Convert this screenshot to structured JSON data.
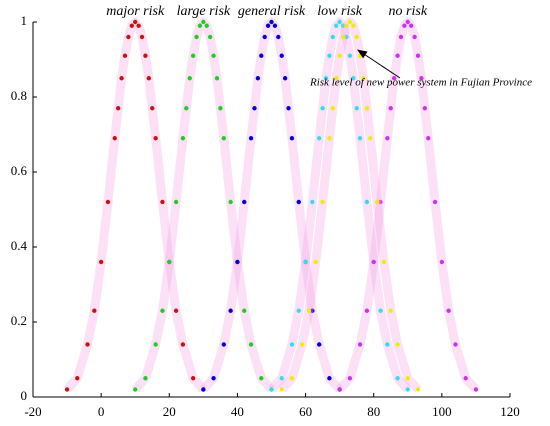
{
  "chart_data": {
    "type": "scatter",
    "xlim": [
      -20,
      120
    ],
    "xticks": [
      -20,
      0,
      20,
      40,
      60,
      80,
      100,
      120
    ],
    "ylim": [
      0,
      1
    ],
    "yticks": [
      0,
      0.2,
      0.4,
      0.6,
      0.8,
      1
    ],
    "grid": false,
    "series": [
      {
        "name": "major risk",
        "color": "#cc1111",
        "x": [
          -10,
          -7,
          -4,
          -2,
          0,
          2,
          4,
          5,
          6,
          7,
          8,
          9,
          10,
          11,
          12,
          13,
          14,
          15,
          16,
          18,
          20,
          22,
          24,
          27,
          30
        ],
        "values": [
          0.02,
          0.05,
          0.14,
          0.23,
          0.36,
          0.52,
          0.69,
          0.77,
          0.85,
          0.91,
          0.96,
          0.99,
          1,
          0.99,
          0.96,
          0.91,
          0.85,
          0.77,
          0.69,
          0.52,
          0.36,
          0.23,
          0.14,
          0.05,
          0.02
        ]
      },
      {
        "name": "large risk",
        "color": "#22cc22",
        "x": [
          10,
          13,
          16,
          18,
          20,
          22,
          24,
          25,
          26,
          27,
          28,
          29,
          30,
          31,
          32,
          33,
          34,
          35,
          36,
          38,
          40,
          42,
          44,
          47,
          50
        ],
        "values": [
          0.02,
          0.05,
          0.14,
          0.23,
          0.36,
          0.52,
          0.69,
          0.77,
          0.85,
          0.91,
          0.96,
          0.99,
          1,
          0.99,
          0.96,
          0.91,
          0.85,
          0.77,
          0.69,
          0.52,
          0.36,
          0.23,
          0.14,
          0.05,
          0.02
        ]
      },
      {
        "name": "general risk",
        "color": "#0000dd",
        "x": [
          30,
          33,
          36,
          38,
          40,
          42,
          44,
          45,
          46,
          47,
          48,
          49,
          50,
          51,
          52,
          53,
          54,
          55,
          56,
          58,
          60,
          62,
          64,
          67,
          70
        ],
        "values": [
          0.02,
          0.05,
          0.14,
          0.23,
          0.36,
          0.52,
          0.69,
          0.77,
          0.85,
          0.91,
          0.96,
          0.99,
          1,
          0.99,
          0.96,
          0.91,
          0.85,
          0.77,
          0.69,
          0.52,
          0.36,
          0.23,
          0.14,
          0.05,
          0.02
        ]
      },
      {
        "name": "low risk",
        "color": "#33ddee",
        "x": [
          50,
          53,
          56,
          58,
          60,
          62,
          64,
          65,
          66,
          67,
          68,
          69,
          70,
          71,
          72,
          73,
          74,
          75,
          76,
          78,
          80,
          82,
          84,
          87,
          90
        ],
        "values": [
          0.02,
          0.05,
          0.14,
          0.23,
          0.36,
          0.52,
          0.69,
          0.77,
          0.85,
          0.91,
          0.96,
          0.99,
          1,
          0.99,
          0.96,
          0.91,
          0.85,
          0.77,
          0.69,
          0.52,
          0.36,
          0.23,
          0.14,
          0.05,
          0.02
        ]
      },
      {
        "name": "no risk",
        "color": "#cc33ee",
        "x": [
          70,
          73,
          76,
          78,
          80,
          82,
          84,
          85,
          86,
          87,
          88,
          89,
          90,
          91,
          92,
          93,
          94,
          95,
          96,
          98,
          100,
          102,
          104,
          107,
          110
        ],
        "values": [
          0.02,
          0.05,
          0.14,
          0.23,
          0.36,
          0.52,
          0.69,
          0.77,
          0.85,
          0.91,
          0.96,
          0.99,
          1,
          0.99,
          0.96,
          0.91,
          0.85,
          0.77,
          0.69,
          0.52,
          0.36,
          0.23,
          0.14,
          0.05,
          0.02
        ]
      },
      {
        "name": "Risk level of new power system in Fujian Province",
        "color": "#eeee00",
        "x": [
          53,
          56,
          59,
          61,
          63,
          65,
          67,
          68,
          69,
          70,
          71,
          72,
          73,
          74,
          75,
          76,
          77,
          78,
          79,
          81,
          83,
          85,
          87,
          90,
          93
        ],
        "values": [
          0.02,
          0.05,
          0.14,
          0.23,
          0.36,
          0.52,
          0.69,
          0.77,
          0.85,
          0.91,
          0.96,
          0.99,
          1,
          0.99,
          0.96,
          0.91,
          0.85,
          0.77,
          0.69,
          0.52,
          0.36,
          0.23,
          0.14,
          0.05,
          0.02
        ]
      }
    ]
  }
}
